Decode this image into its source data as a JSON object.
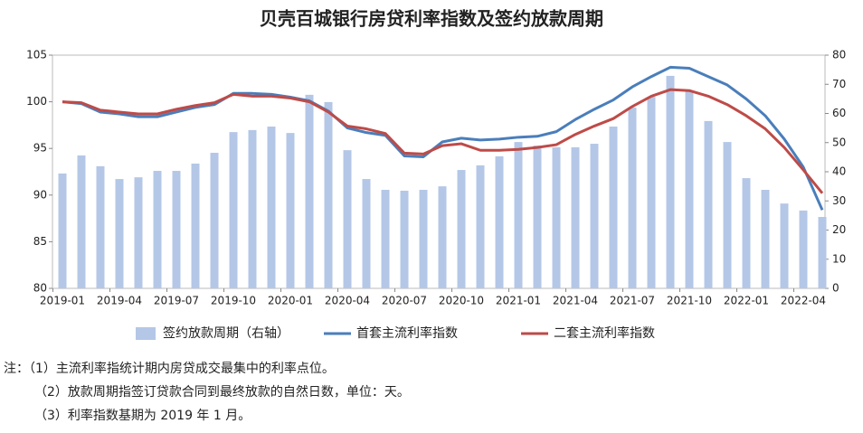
{
  "chart_data": {
    "type": "bar_line",
    "title": "贝壳百城银行房贷利率指数及签约放款周期",
    "categories": [
      "2019-01",
      null,
      null,
      "2019-04",
      null,
      null,
      "2019-07",
      null,
      null,
      "2019-10",
      null,
      null,
      "2020-01",
      null,
      null,
      "2020-04",
      null,
      null,
      "2020-07",
      null,
      null,
      "2020-10",
      null,
      null,
      "2021-01",
      null,
      null,
      "2021-04",
      null,
      null,
      "2021-07",
      null,
      null,
      "2021-10",
      null,
      null,
      "2022-01",
      null,
      null,
      "2022-04",
      null
    ],
    "series": [
      {
        "name": "签约放款周期（右轴）",
        "type": "bar",
        "axis": "y2",
        "color": "#b4c7e7",
        "values": [
          39.4,
          45.6,
          41.9,
          37.5,
          38.1,
          40.3,
          40.3,
          42.8,
          46.5,
          53.6,
          54.3,
          55.5,
          53.3,
          66.4,
          63.9,
          47.4,
          37.5,
          33.8,
          33.5,
          33.8,
          35.0,
          40.6,
          42.2,
          45.3,
          50.2,
          49.0,
          48.4,
          48.4,
          49.6,
          55.5,
          62.0,
          65.7,
          72.9,
          67.9,
          57.4,
          50.2,
          37.8,
          33.8,
          29.1,
          26.7,
          24.5
        ]
      },
      {
        "name": "首套主流利率指数",
        "type": "line",
        "color": "#4a7ebb",
        "values": [
          100.0,
          99.8,
          98.9,
          98.7,
          98.4,
          98.4,
          98.9,
          99.4,
          99.7,
          100.9,
          100.9,
          100.8,
          100.5,
          100.1,
          99.0,
          97.2,
          96.7,
          96.4,
          94.2,
          94.1,
          95.7,
          96.1,
          95.9,
          96.0,
          96.2,
          96.3,
          96.8,
          98.1,
          99.2,
          100.2,
          101.6,
          102.7,
          103.7,
          103.6,
          102.7,
          101.8,
          100.3,
          98.5,
          96.0,
          93.0,
          88.4
        ]
      },
      {
        "name": "二套主流利率指数",
        "type": "line",
        "color": "#be4b48",
        "values": [
          100.0,
          99.9,
          99.1,
          98.9,
          98.7,
          98.7,
          99.2,
          99.6,
          99.9,
          100.8,
          100.6,
          100.6,
          100.4,
          100.0,
          98.9,
          97.4,
          97.1,
          96.6,
          94.5,
          94.4,
          95.3,
          95.5,
          94.8,
          94.8,
          94.9,
          95.1,
          95.4,
          96.5,
          97.4,
          98.2,
          99.5,
          100.6,
          101.3,
          101.2,
          100.6,
          99.7,
          98.5,
          97.1,
          95.1,
          92.7,
          90.2
        ]
      }
    ],
    "ylim": [
      80,
      105
    ],
    "yticks": [
      80,
      85,
      90,
      95,
      100,
      105
    ],
    "y2lim": [
      0,
      80
    ],
    "y2ticks": [
      0,
      10,
      20,
      30,
      40,
      50,
      60,
      70,
      80
    ],
    "notes": [
      "注：（1）主流利率指统计期内房贷成交最集中的利率点位。",
      "（2）放款周期指签订贷款合同到最终放款的自然日数，单位：天。",
      "（3）利率指数基期为 2019 年 1 月。"
    ]
  }
}
